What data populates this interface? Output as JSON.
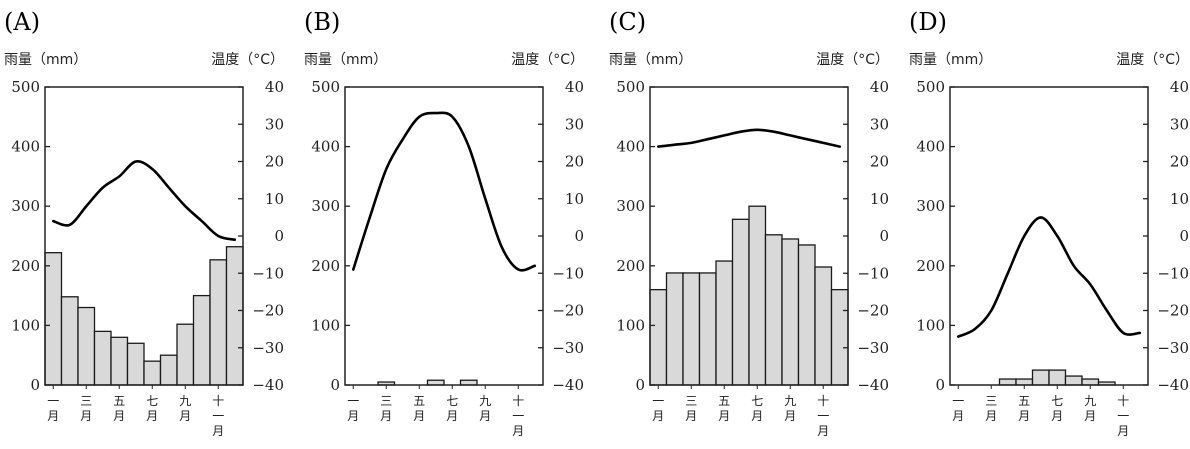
{
  "chart_data": [
    {
      "type": "bar",
      "label": "(A)",
      "y_left_label": "雨量（mm）",
      "y_right_label": "温度（°C）",
      "ylim": [
        0,
        500
      ],
      "y2lim": [
        -40,
        40
      ],
      "y_ticks": [
        0,
        100,
        200,
        300,
        400,
        500
      ],
      "y2_ticks": [
        -40,
        -30,
        -20,
        -10,
        0,
        10,
        20,
        30,
        40
      ],
      "month_labels": [
        [
          "一",
          "月"
        ],
        [
          "三",
          "月"
        ],
        [
          "五",
          "月"
        ],
        [
          "七",
          "月"
        ],
        [
          "九",
          "月"
        ],
        [
          "十",
          "一",
          "月"
        ]
      ],
      "precipitation": [
        222,
        148,
        130,
        90,
        80,
        70,
        40,
        50,
        102,
        150,
        210,
        232
      ],
      "temperature": [
        4,
        3,
        8,
        13,
        16,
        20,
        18,
        13,
        8,
        4,
        0,
        -1
      ]
    },
    {
      "type": "bar",
      "label": "(B)",
      "y_left_label": "雨量（mm）",
      "y_right_label": "温度（°C）",
      "ylim": [
        0,
        500
      ],
      "y2lim": [
        -40,
        40
      ],
      "y_ticks": [
        0,
        100,
        200,
        300,
        400,
        500
      ],
      "y2_ticks": [
        -40,
        -30,
        -20,
        -10,
        0,
        10,
        20,
        30,
        40
      ],
      "month_labels": [
        [
          "一",
          "月"
        ],
        [
          "三",
          "月"
        ],
        [
          "五",
          "月"
        ],
        [
          "七",
          "月"
        ],
        [
          "九",
          "月"
        ],
        [
          "十",
          "一",
          "月"
        ]
      ],
      "precipitation": [
        0,
        0,
        5,
        0,
        0,
        8,
        0,
        8,
        0,
        0,
        0,
        0
      ],
      "temperature": [
        -9,
        5,
        18,
        26,
        32,
        33,
        32,
        24,
        10,
        -3,
        -9,
        -8
      ]
    },
    {
      "type": "bar",
      "label": "(C)",
      "y_left_label": "雨量（mm）",
      "y_right_label": "温度（°C）",
      "ylim": [
        0,
        500
      ],
      "y2lim": [
        -40,
        40
      ],
      "y_ticks": [
        0,
        100,
        200,
        300,
        400,
        500
      ],
      "y2_ticks": [
        -40,
        -30,
        -20,
        -10,
        0,
        10,
        20,
        30,
        40
      ],
      "month_labels": [
        [
          "一",
          "月"
        ],
        [
          "三",
          "月"
        ],
        [
          "五",
          "月"
        ],
        [
          "七",
          "月"
        ],
        [
          "九",
          "月"
        ],
        [
          "十",
          "一",
          "月"
        ]
      ],
      "precipitation": [
        160,
        188,
        188,
        188,
        208,
        278,
        300,
        252,
        245,
        235,
        198,
        160
      ],
      "temperature": [
        24,
        24.5,
        25,
        26,
        27,
        28,
        28.5,
        28,
        27,
        26,
        25,
        24
      ]
    },
    {
      "type": "bar",
      "label": "(D)",
      "y_left_label": "雨量（mm）",
      "y_right_label": "温度（°C）",
      "ylim": [
        0,
        500
      ],
      "y2lim": [
        -40,
        40
      ],
      "y_ticks": [
        0,
        100,
        200,
        300,
        400,
        500
      ],
      "y2_ticks": [
        -40,
        -30,
        -20,
        -10,
        0,
        10,
        20,
        30,
        40
      ],
      "month_labels": [
        [
          "一",
          "月"
        ],
        [
          "三",
          "月"
        ],
        [
          "五",
          "月"
        ],
        [
          "七",
          "月"
        ],
        [
          "九",
          "月"
        ],
        [
          "十",
          "一",
          "月"
        ]
      ],
      "precipitation": [
        0,
        0,
        0,
        10,
        10,
        25,
        25,
        15,
        10,
        5,
        0,
        0
      ],
      "temperature": [
        -27,
        -25,
        -20,
        -10,
        0,
        5,
        0,
        -8,
        -13,
        -20,
        -26,
        -26
      ]
    }
  ],
  "colors": {
    "bar_fill": "#d9d9d9",
    "bar_stroke": "#1a1a1a",
    "line": "#000000",
    "axis": "#222222"
  }
}
